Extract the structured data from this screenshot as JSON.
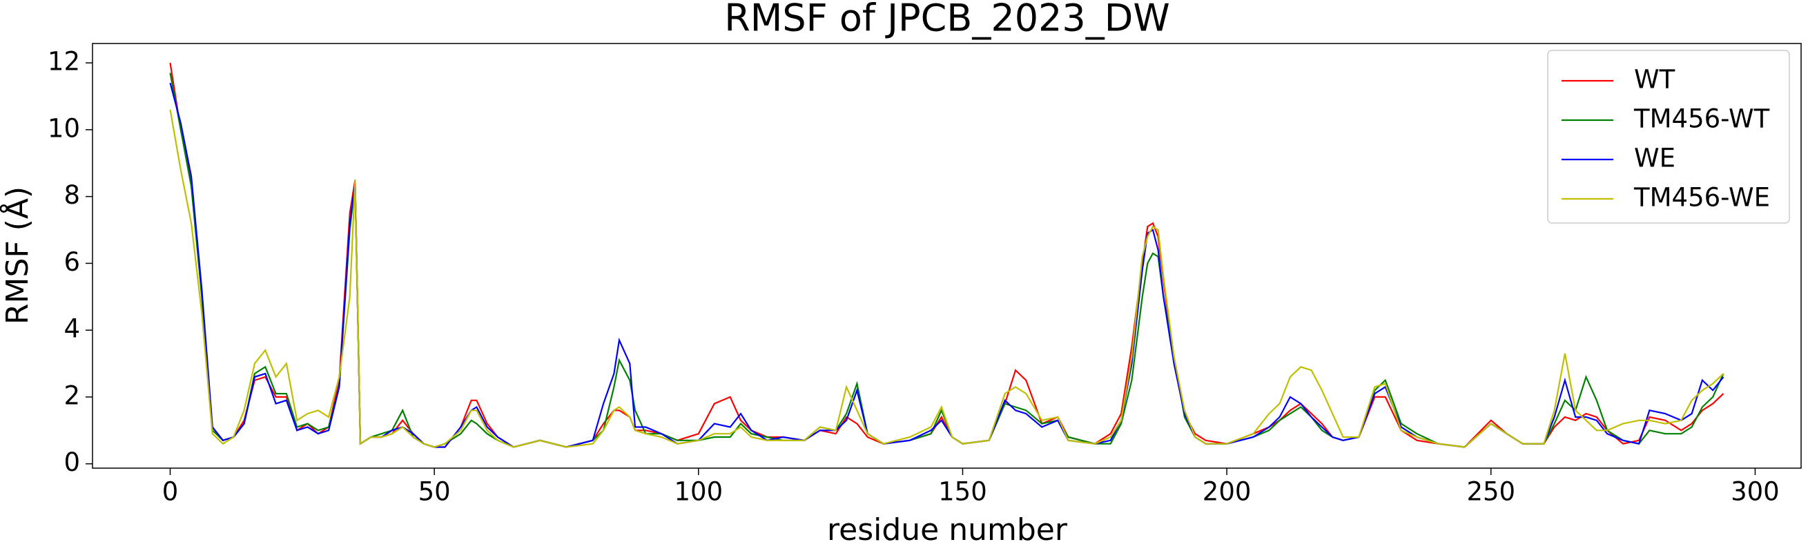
{
  "chart_data": {
    "type": "line",
    "title": "RMSF of JPCB_2023_DW",
    "xlabel": "residue number",
    "ylabel": "RMSF (Å)",
    "xlim": [
      -14.7,
      308.7
    ],
    "xticks": [
      0,
      50,
      100,
      150,
      200,
      250,
      300
    ],
    "ylim": [
      -0.13,
      12.58
    ],
    "yticks": [
      0,
      2,
      4,
      6,
      8,
      10,
      12
    ],
    "grid": false,
    "legend": "upper right",
    "x": [
      0,
      2,
      4,
      6,
      8,
      10,
      12,
      14,
      16,
      18,
      20,
      22,
      24,
      26,
      28,
      30,
      32,
      34,
      35,
      36,
      38,
      40,
      42,
      44,
      46,
      48,
      50,
      52,
      55,
      57,
      58,
      60,
      62,
      65,
      70,
      75,
      80,
      82,
      84,
      85,
      87,
      88,
      90,
      93,
      96,
      100,
      103,
      106,
      108,
      110,
      113,
      116,
      120,
      123,
      126,
      128,
      130,
      132,
      135,
      140,
      144,
      146,
      148,
      150,
      155,
      158,
      160,
      162,
      165,
      168,
      170,
      175,
      178,
      180,
      182,
      184,
      185,
      186,
      187,
      188,
      190,
      192,
      194,
      196,
      200,
      205,
      208,
      210,
      212,
      214,
      216,
      218,
      220,
      222,
      225,
      228,
      230,
      233,
      236,
      240,
      245,
      250,
      253,
      256,
      260,
      262,
      264,
      266,
      268,
      270,
      272,
      275,
      278,
      280,
      283,
      286,
      288,
      290,
      292,
      294
    ],
    "series": [
      {
        "name": "WT",
        "color": "#ff0000",
        "values": [
          12,
          10,
          8.5,
          5,
          1.1,
          0.7,
          0.8,
          1.3,
          2.5,
          2.6,
          2.0,
          2.0,
          1.0,
          1.2,
          0.9,
          1.1,
          2.5,
          7.5,
          8.5,
          0.6,
          0.8,
          0.8,
          0.9,
          1.3,
          0.9,
          0.6,
          0.5,
          0.5,
          1.1,
          1.9,
          1.9,
          1.2,
          0.8,
          0.5,
          0.7,
          0.5,
          0.7,
          1.2,
          1.6,
          1.6,
          1.4,
          1.0,
          1.0,
          0.9,
          0.7,
          0.9,
          1.8,
          2.0,
          1.3,
          1.0,
          0.8,
          0.8,
          0.7,
          1.0,
          0.9,
          1.4,
          1.2,
          0.8,
          0.6,
          0.7,
          0.9,
          1.4,
          0.8,
          0.6,
          0.7,
          1.8,
          2.8,
          2.5,
          1.2,
          1.4,
          0.8,
          0.6,
          0.9,
          1.5,
          3.5,
          6.0,
          7.1,
          7.2,
          6.8,
          5.5,
          3.0,
          1.5,
          0.9,
          0.7,
          0.6,
          0.9,
          1.1,
          1.3,
          1.6,
          1.8,
          1.5,
          1.2,
          0.8,
          0.7,
          0.8,
          2.0,
          2.0,
          1.0,
          0.7,
          0.6,
          0.5,
          1.3,
          0.9,
          0.6,
          0.6,
          1.1,
          1.4,
          1.3,
          1.5,
          1.4,
          1.0,
          0.6,
          0.7,
          1.4,
          1.3,
          1.0,
          1.2,
          1.6,
          1.8,
          2.1
        ]
      },
      {
        "name": "TM456-WT",
        "color": "#008000",
        "values": [
          11.7,
          10,
          8.3,
          5,
          1.0,
          0.7,
          0.8,
          1.2,
          2.7,
          2.9,
          2.1,
          2.1,
          1.1,
          1.2,
          1.0,
          1.1,
          2.3,
          7,
          8.4,
          0.6,
          0.8,
          0.9,
          1.0,
          1.6,
          0.8,
          0.6,
          0.5,
          0.6,
          0.9,
          1.3,
          1.2,
          0.9,
          0.7,
          0.5,
          0.7,
          0.5,
          0.7,
          1.0,
          2.3,
          3.1,
          2.5,
          1.6,
          0.9,
          0.9,
          0.7,
          0.7,
          0.8,
          0.8,
          1.2,
          0.9,
          0.8,
          0.7,
          0.7,
          1.1,
          1.0,
          1.5,
          2.4,
          0.9,
          0.6,
          0.7,
          0.9,
          1.6,
          0.8,
          0.6,
          0.7,
          1.8,
          1.7,
          1.6,
          1.2,
          1.3,
          0.8,
          0.6,
          0.6,
          1.2,
          2.5,
          5.0,
          6.0,
          6.3,
          6.2,
          5.0,
          3.2,
          1.4,
          0.8,
          0.6,
          0.6,
          0.8,
          1.0,
          1.3,
          1.5,
          1.7,
          1.4,
          1.0,
          0.8,
          0.7,
          0.8,
          2.2,
          2.5,
          1.2,
          0.9,
          0.6,
          0.5,
          1.2,
          0.9,
          0.6,
          0.6,
          1.2,
          1.9,
          1.6,
          2.6,
          1.9,
          1.0,
          0.7,
          0.6,
          1.0,
          0.9,
          0.9,
          1.1,
          1.7,
          2.0,
          2.7
        ]
      },
      {
        "name": "WE",
        "color": "#0000ff",
        "values": [
          11.4,
          10.2,
          8.6,
          5.2,
          1.1,
          0.7,
          0.8,
          1.2,
          2.6,
          2.7,
          1.8,
          1.9,
          1.0,
          1.1,
          0.9,
          1.0,
          2.3,
          7.2,
          8.4,
          0.6,
          0.8,
          0.8,
          1.0,
          1.1,
          0.9,
          0.6,
          0.5,
          0.5,
          1.1,
          1.6,
          1.7,
          1.1,
          0.8,
          0.5,
          0.7,
          0.5,
          0.7,
          1.8,
          2.7,
          3.7,
          3.0,
          1.1,
          1.1,
          0.9,
          0.6,
          0.7,
          1.2,
          1.1,
          1.5,
          1.0,
          0.7,
          0.8,
          0.7,
          1.0,
          1.0,
          1.3,
          2.2,
          0.9,
          0.6,
          0.7,
          1.0,
          1.3,
          0.8,
          0.6,
          0.7,
          1.9,
          1.6,
          1.5,
          1.1,
          1.3,
          0.7,
          0.6,
          0.7,
          1.3,
          3.0,
          5.8,
          6.9,
          7.0,
          6.4,
          5.0,
          3.0,
          1.5,
          0.8,
          0.6,
          0.6,
          0.8,
          1.1,
          1.4,
          2.0,
          1.8,
          1.4,
          1.1,
          0.8,
          0.7,
          0.8,
          2.1,
          2.3,
          1.1,
          0.8,
          0.6,
          0.5,
          1.2,
          0.9,
          0.6,
          0.6,
          1.4,
          2.5,
          1.4,
          1.4,
          1.3,
          0.9,
          0.7,
          0.6,
          1.6,
          1.5,
          1.3,
          1.5,
          2.5,
          2.2,
          2.6
        ]
      },
      {
        "name": "TM456-WE",
        "color": "#bfbf00",
        "values": [
          10.6,
          8.8,
          7.2,
          4.5,
          0.9,
          0.6,
          0.8,
          1.6,
          3.0,
          3.4,
          2.6,
          3.0,
          1.3,
          1.5,
          1.6,
          1.4,
          2.6,
          5.0,
          8.5,
          0.6,
          0.8,
          0.8,
          0.9,
          1.1,
          0.8,
          0.6,
          0.5,
          0.6,
          1.0,
          1.6,
          1.6,
          1.0,
          0.7,
          0.5,
          0.7,
          0.5,
          0.6,
          1.0,
          1.6,
          1.7,
          1.4,
          1.0,
          0.9,
          0.8,
          0.6,
          0.7,
          0.9,
          0.9,
          1.1,
          0.8,
          0.7,
          0.7,
          0.7,
          1.1,
          1.0,
          2.3,
          1.6,
          0.9,
          0.6,
          0.8,
          1.1,
          1.7,
          0.8,
          0.6,
          0.7,
          2.1,
          2.3,
          2.1,
          1.3,
          1.4,
          0.7,
          0.6,
          0.8,
          1.3,
          3.2,
          6.2,
          6.8,
          7.1,
          7.0,
          5.6,
          3.2,
          1.6,
          0.8,
          0.6,
          0.6,
          0.9,
          1.5,
          1.8,
          2.6,
          2.9,
          2.8,
          2.2,
          1.5,
          0.8,
          0.8,
          2.3,
          2.4,
          1.0,
          0.8,
          0.6,
          0.5,
          1.2,
          0.9,
          0.6,
          0.6,
          1.6,
          3.3,
          1.6,
          1.3,
          1.0,
          1.0,
          1.2,
          1.3,
          1.3,
          1.2,
          1.3,
          1.9,
          2.2,
          2.4,
          2.7
        ]
      }
    ]
  }
}
